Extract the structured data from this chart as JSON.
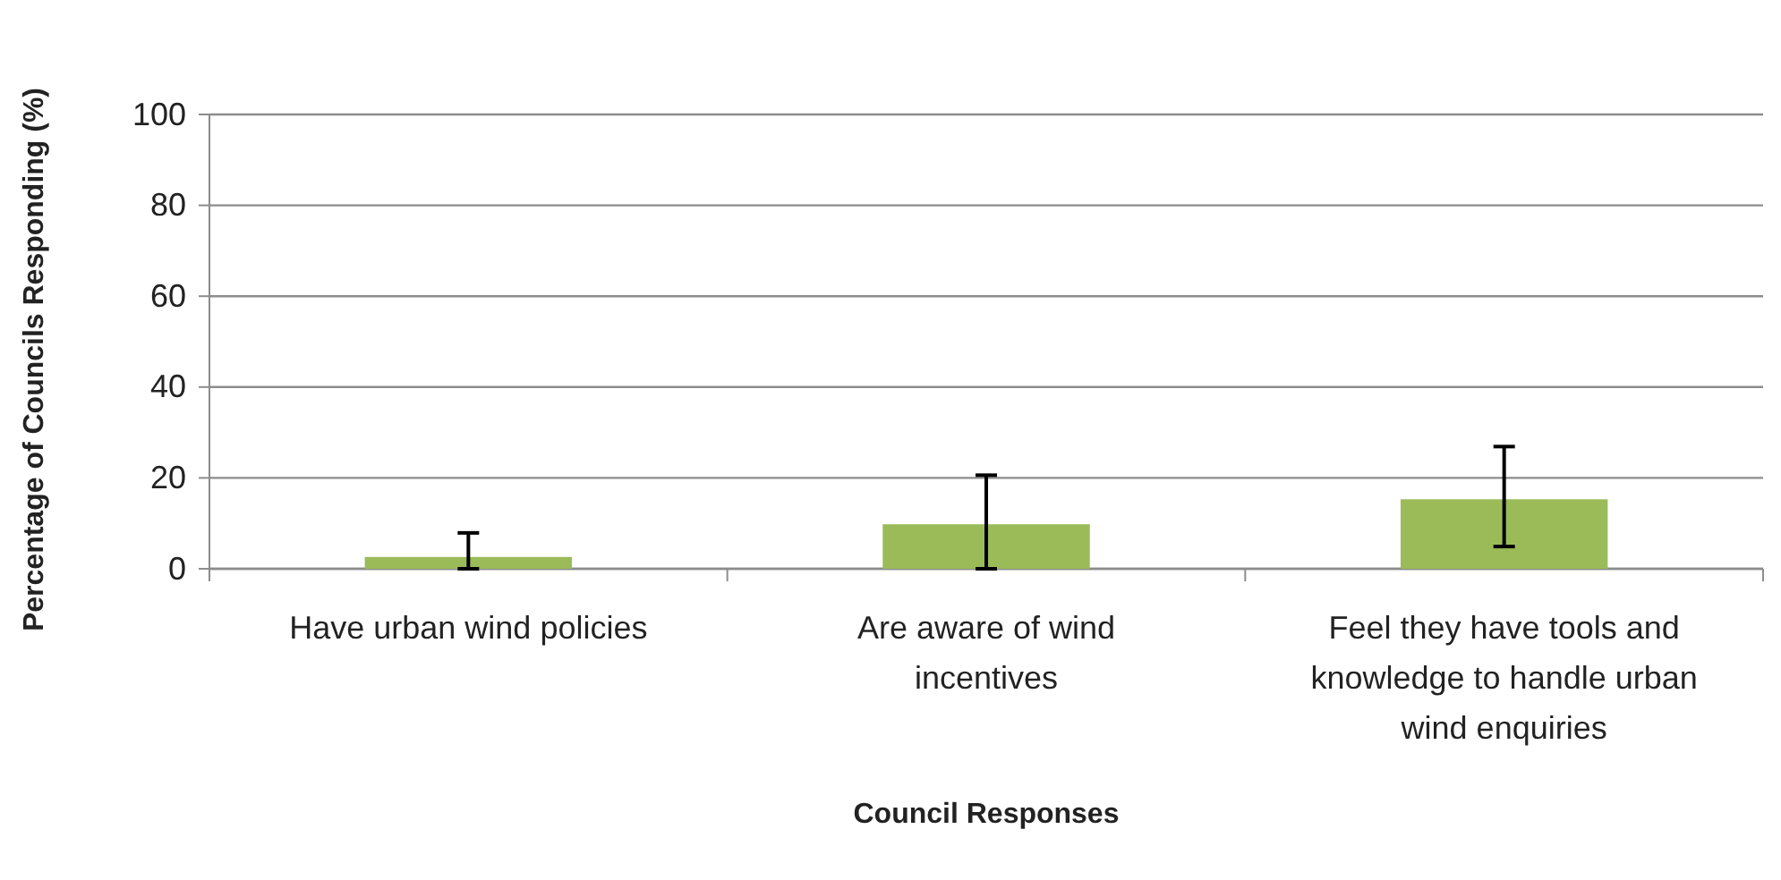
{
  "chart_data": {
    "type": "bar",
    "xlabel": "Council Responses",
    "ylabel": "Percentage of Councils Responding (%)",
    "categories": [
      "Have urban wind policies",
      "Are aware of wind incentives",
      "Feel they have tools and knowledge to handle urban wind enquiries"
    ],
    "values": [
      2.6,
      9.8,
      15.3
    ],
    "color": "#9bbb59",
    "errors": [
      [
        0,
        7.9
      ],
      [
        0,
        20.6
      ],
      [
        4.9,
        26.9
      ]
    ],
    "ylim": [
      0,
      100
    ],
    "yticks": [
      0,
      20,
      40,
      60,
      80,
      100
    ],
    "grid": "y"
  }
}
